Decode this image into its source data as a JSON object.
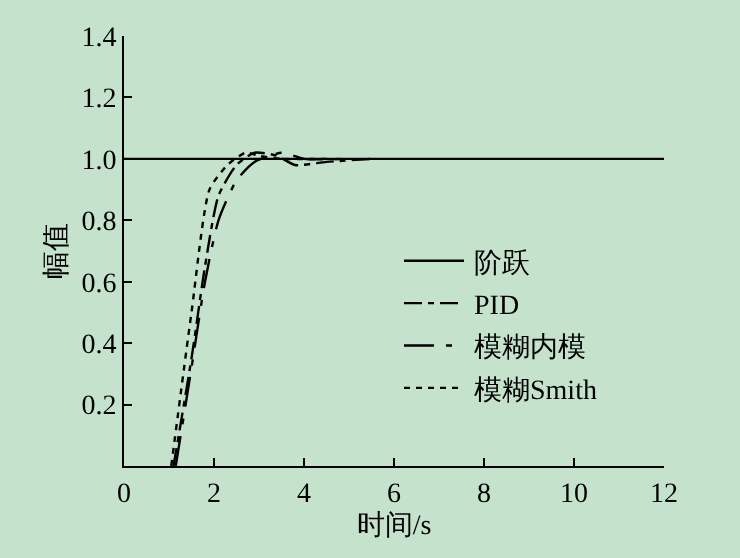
{
  "chart_data": {
    "type": "line",
    "xlabel": "时间/s",
    "ylabel": "幅值",
    "xlim": [
      0,
      12
    ],
    "ylim": [
      0,
      1.4
    ],
    "xticks": [
      0,
      2,
      4,
      6,
      8,
      10,
      12
    ],
    "yticks": [
      {
        "value": 0.2,
        "label": "0.2"
      },
      {
        "value": 0.4,
        "label": "0.4"
      },
      {
        "value": 0.6,
        "label": "0.6"
      },
      {
        "value": 0.8,
        "label": "0.8"
      },
      {
        "value": 1,
        "label": "1.0"
      },
      {
        "value": 1.2,
        "label": "1.2"
      },
      {
        "value": 1.4,
        "label": "1.4"
      }
    ],
    "grid": false,
    "legend": "right",
    "marker": "none",
    "series": [
      {
        "name": "阶跃",
        "color": "#000000",
        "line_style": "solid",
        "x": [
          0,
          12
        ],
        "values": [
          1.0,
          1.0
        ]
      },
      {
        "name": "PID",
        "color": "#000000",
        "line_style": "dashdot",
        "x": [
          1.1,
          1.5,
          1.8,
          2.1,
          2.5,
          2.9,
          3.4,
          3.8,
          4.5,
          5.5
        ],
        "values": [
          0,
          0.35,
          0.65,
          0.88,
          0.98,
          1.02,
          1.01,
          0.98,
          0.99,
          1.0
        ]
      },
      {
        "name": "模糊内模",
        "color": "#000000",
        "line_style": "longdashdot",
        "x": [
          1.15,
          1.5,
          1.8,
          2.1,
          2.5,
          2.9,
          3.5,
          4.0,
          5.0
        ],
        "values": [
          0,
          0.32,
          0.6,
          0.8,
          0.93,
          0.99,
          1.02,
          1.0,
          1.0
        ]
      },
      {
        "name": "模糊Smith",
        "color": "#000000",
        "line_style": "dotted",
        "x": [
          1.05,
          1.5,
          1.9,
          2.3,
          2.7,
          3.0,
          3.5,
          4.5
        ],
        "values": [
          0,
          0.5,
          0.9,
          0.98,
          1.02,
          1.01,
          1.0,
          1.0
        ]
      }
    ]
  }
}
